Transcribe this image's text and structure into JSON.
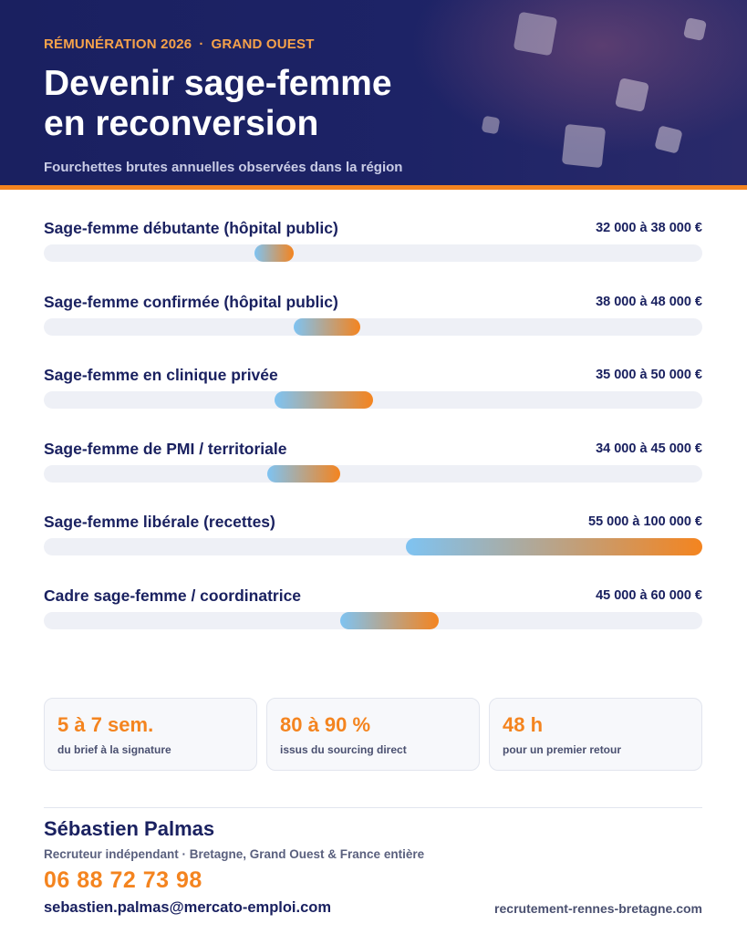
{
  "header": {
    "kicker_left": "RÉMUNÉRATION 2026",
    "kicker_sep": "·",
    "kicker_right": "GRAND OUEST",
    "title_line1": "Devenir sage-femme",
    "title_line2": "en reconversion",
    "subtitle": "Fourchettes brutes annuelles observées dans la région"
  },
  "chart_data": {
    "type": "bar",
    "scale_max": 100000,
    "rows": [
      {
        "label": "Sage-femme débutante (hôpital public)",
        "range": "32 000 à 38 000 €",
        "min": 32000,
        "max": 38000
      },
      {
        "label": "Sage-femme confirmée (hôpital public)",
        "range": "38 000 à 48 000 €",
        "min": 38000,
        "max": 48000
      },
      {
        "label": "Sage-femme en clinique privée",
        "range": "35 000 à 50 000 €",
        "min": 35000,
        "max": 50000
      },
      {
        "label": "Sage-femme de PMI / territoriale",
        "range": "34 000 à 45 000 €",
        "min": 34000,
        "max": 45000
      },
      {
        "label": "Sage-femme libérale (recettes)",
        "range": "55 000 à 100 000 €",
        "min": 55000,
        "max": 100000
      },
      {
        "label": "Cadre sage-femme / coordinatrice",
        "range": "45 000 à 60 000 €",
        "min": 45000,
        "max": 60000
      }
    ]
  },
  "stats": [
    {
      "value": "5 à 7 sem.",
      "caption": "du brief à la signature"
    },
    {
      "value": "80 à 90 %",
      "caption": "issus du sourcing direct"
    },
    {
      "value": "48 h",
      "caption": "pour un premier retour"
    }
  ],
  "contact": {
    "name": "Sébastien Palmas",
    "role": "Recruteur indépendant · Bretagne, Grand Ouest & France entière",
    "phone": "06 88 72 73 98",
    "email": "sebastien.palmas@mercato-emploi.com",
    "website": "recrutement-rennes-bretagne.com"
  },
  "colors": {
    "navy": "#1a2160",
    "orange": "#f4841f",
    "bar_start": "#7ec3f2",
    "track": "#eef0f6"
  }
}
